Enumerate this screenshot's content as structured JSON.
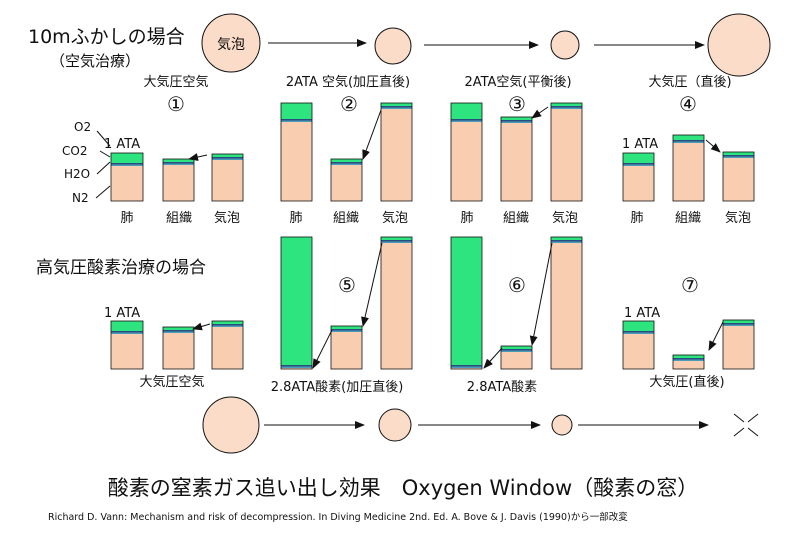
{
  "header": {
    "scenario_10m": "10mふかしの場合",
    "scenario_10m_sub": "（空気治療）",
    "scenario_hbo": "高気圧酸素治療の場合"
  },
  "bubble_label": "気泡",
  "gas_labels": [
    "O2",
    "CO2",
    "H2O",
    "N2"
  ],
  "ata_1": "1 ATA",
  "columns": [
    "肺",
    "組織",
    "気泡"
  ],
  "panels": {
    "p1": {
      "num": "①",
      "caption": "大気圧空気"
    },
    "p2": {
      "num": "②",
      "caption": "2ATA 空気(加圧直後)"
    },
    "p3": {
      "num": "③",
      "caption": "2ATA空気(平衡後)"
    },
    "p4": {
      "num": "④",
      "caption": "大気圧（直後)"
    },
    "p5": {
      "num": "⑤",
      "caption": "大気圧空気"
    },
    "p6": {
      "num": "⑤",
      "caption": "2.8ATA酸素(加圧直後)"
    },
    "p7": {
      "num": "⑥",
      "caption": "2.8ATA酸素"
    },
    "p8": {
      "num": "⑦",
      "caption": "大気圧(直後)"
    }
  },
  "title": "酸素の窒素ガス追い出し効果　Oxygen Window（酸素の窓）",
  "citation": "Richard D. Vann: Mechanism and risk of decompression. In Diving Medicine 2nd. Ed. A. Bove & J. Davis (1990)から一部改変",
  "colors": {
    "n2": "#f9cdb0",
    "o2": "#2ee47f",
    "h2o": "#4a9cb8",
    "co2": "#2a4d80",
    "bubble": "#fadcc8"
  }
}
